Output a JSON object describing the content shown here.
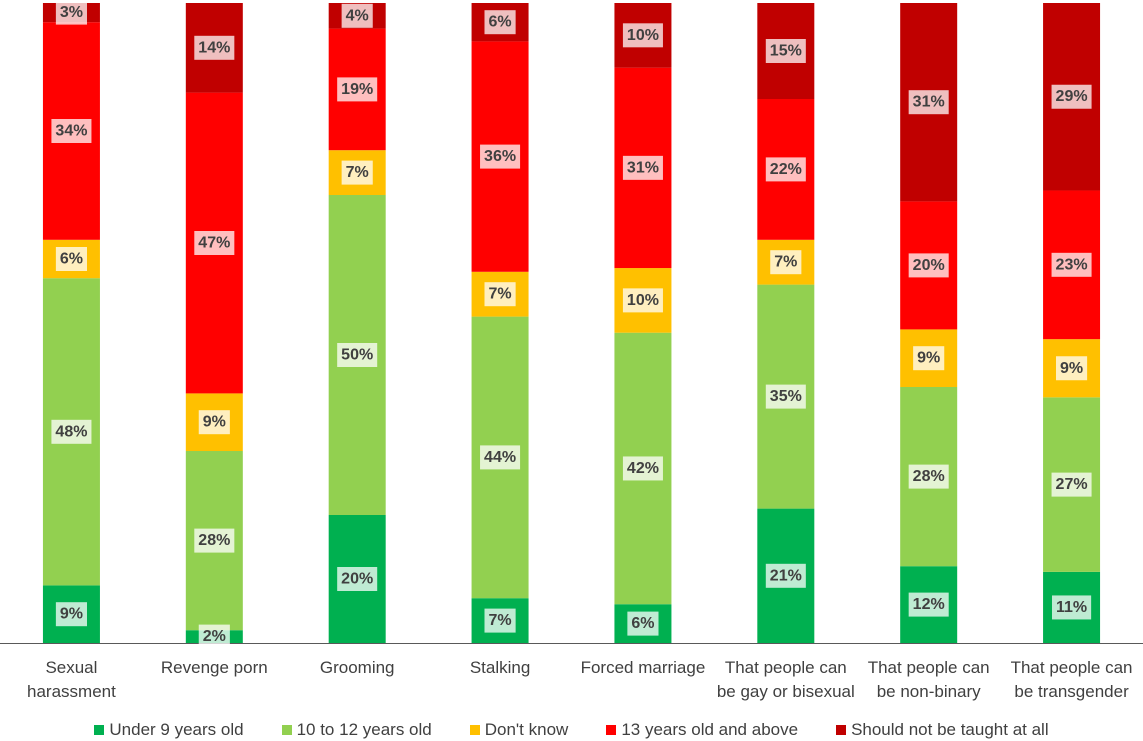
{
  "chart_data": {
    "type": "bar",
    "stacked": true,
    "normalized": true,
    "categories": [
      "Sexual harassment",
      "Revenge porn",
      "Grooming",
      "Stalking",
      "Forced marriage",
      "That people can be gay or bisexual",
      "That people can be non-binary",
      "That people can be transgender"
    ],
    "series": [
      {
        "name": "Under 9 years old",
        "color": "#00B050",
        "values": [
          9,
          2,
          20,
          7,
          6,
          21,
          12,
          11
        ]
      },
      {
        "name": "10 to 12 years old",
        "color": "#92D050",
        "values": [
          48,
          28,
          50,
          44,
          42,
          35,
          28,
          27
        ]
      },
      {
        "name": "Don't know",
        "color": "#FFC000",
        "values": [
          6,
          9,
          7,
          7,
          10,
          7,
          9,
          9
        ]
      },
      {
        "name": "13 years old and above",
        "color": "#FF0000",
        "values": [
          34,
          47,
          19,
          36,
          31,
          22,
          20,
          23
        ]
      },
      {
        "name": "Should not be taught at all",
        "color": "#C00000",
        "values": [
          3,
          14,
          4,
          6,
          10,
          15,
          31,
          29
        ]
      }
    ],
    "value_suffix": "%",
    "ylim": [
      0,
      100
    ],
    "y_axis_shown": false,
    "grid": false,
    "data_labels": true,
    "legend": "bottom"
  }
}
